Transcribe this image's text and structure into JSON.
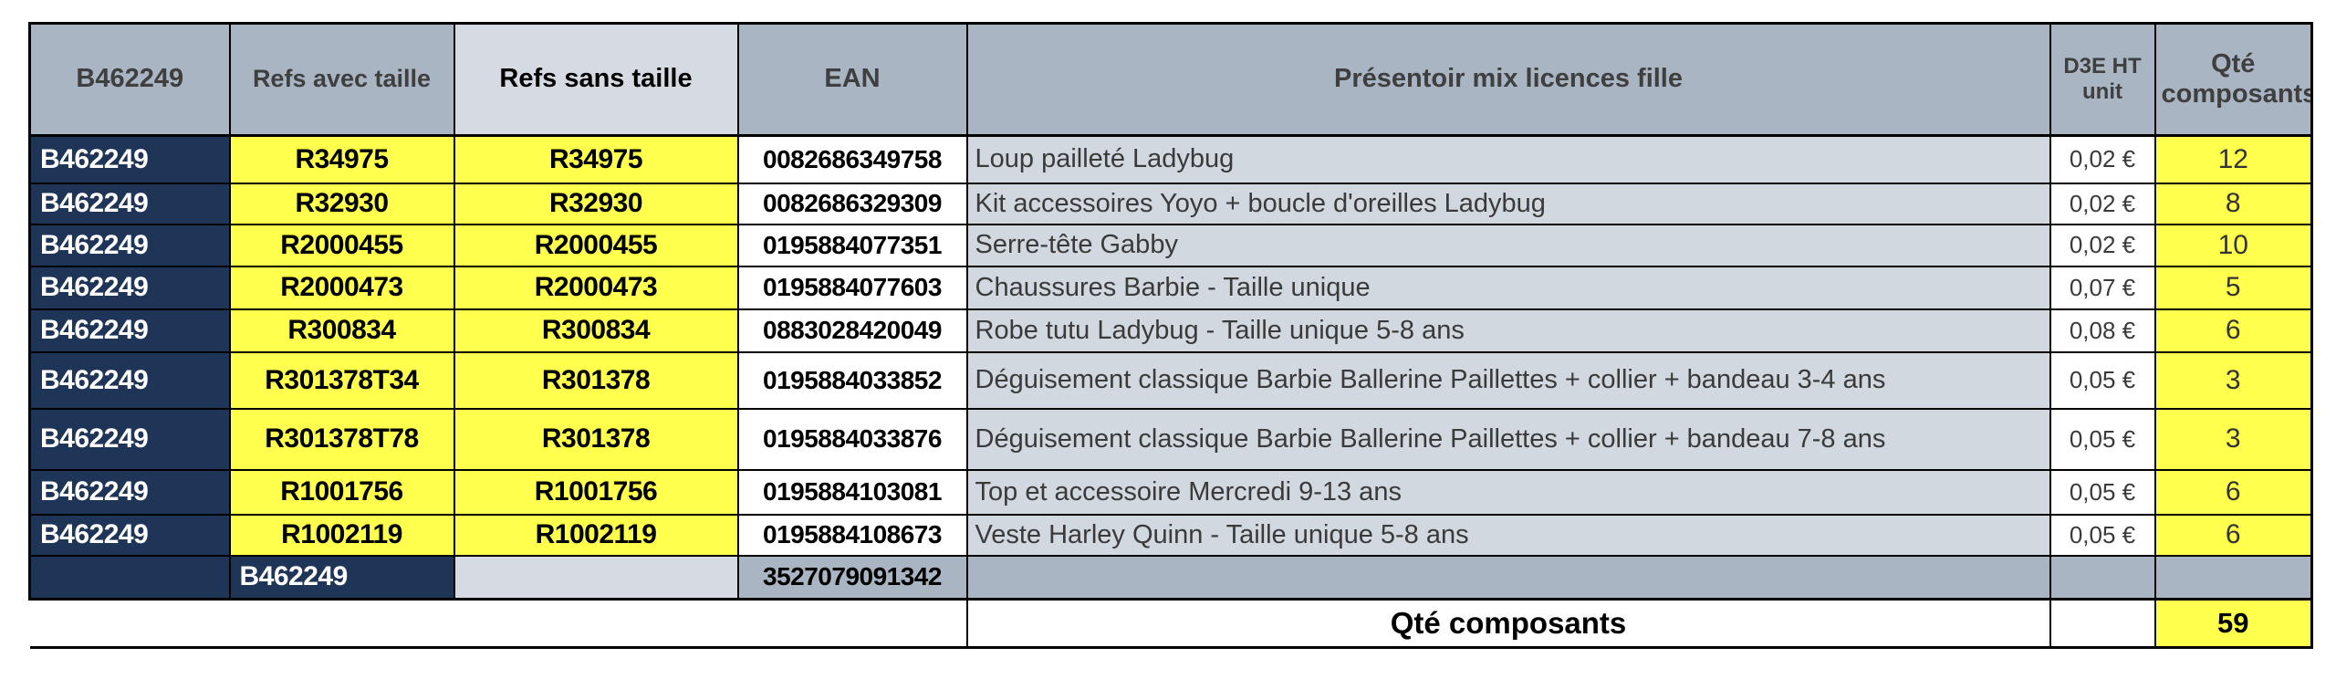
{
  "table": {
    "columns": [
      "B462249",
      "Refs avec taille",
      "Refs sans taille",
      "EAN",
      "Présentoir mix licences fille",
      "D3E HT unit",
      "Qté composants"
    ],
    "rows": [
      {
        "batch": "B462249",
        "ref_with_size": "R34975",
        "ref_without_size": "R34975",
        "ean": "0082686349758",
        "description": "Loup pailleté Ladybug",
        "d3e": "0,02 €",
        "qty": "12"
      },
      {
        "batch": "B462249",
        "ref_with_size": "R32930",
        "ref_without_size": "R32930",
        "ean": "0082686329309",
        "description": "Kit accessoires Yoyo + boucle d'oreilles Ladybug",
        "d3e": "0,02 €",
        "qty": "8"
      },
      {
        "batch": "B462249",
        "ref_with_size": "R2000455",
        "ref_without_size": "R2000455",
        "ean": "0195884077351",
        "description": "Serre-tête Gabby",
        "d3e": "0,02 €",
        "qty": "10"
      },
      {
        "batch": "B462249",
        "ref_with_size": "R2000473",
        "ref_without_size": "R2000473",
        "ean": "0195884077603",
        "description": "Chaussures Barbie - Taille unique",
        "d3e": "0,07 €",
        "qty": "5"
      },
      {
        "batch": "B462249",
        "ref_with_size": "R300834",
        "ref_without_size": "R300834",
        "ean": "0883028420049",
        "description": "Robe tutu Ladybug - Taille unique 5-8 ans",
        "d3e": "0,08 €",
        "qty": "6"
      },
      {
        "batch": "B462249",
        "ref_with_size": "R301378T34",
        "ref_without_size": "R301378",
        "ean": "0195884033852",
        "description": "Déguisement classique Barbie Ballerine Paillettes + collier + bandeau 3-4 ans",
        "d3e": "0,05 €",
        "qty": "3"
      },
      {
        "batch": "B462249",
        "ref_with_size": "R301378T78",
        "ref_without_size": "R301378",
        "ean": "0195884033876",
        "description": "Déguisement classique Barbie Ballerine Paillettes + collier + bandeau 7-8 ans",
        "d3e": "0,05 €",
        "qty": "3"
      },
      {
        "batch": "B462249",
        "ref_with_size": "R1001756",
        "ref_without_size": "R1001756",
        "ean": "0195884103081",
        "description": "Top et accessoire Mercredi 9-13 ans",
        "d3e": "0,05 €",
        "qty": "6"
      },
      {
        "batch": "B462249",
        "ref_with_size": "R1002119",
        "ref_without_size": "R1002119",
        "ean": "0195884108673",
        "description": "Veste Harley Quinn - Taille unique 5-8 ans",
        "d3e": "0,05 €",
        "qty": "6"
      }
    ],
    "summary_row": {
      "batch": "B462249",
      "ean": "3527079091342"
    },
    "footer": {
      "label": "Qté composants",
      "total": "59"
    }
  },
  "colors": {
    "header_background": "#a9b5c3",
    "light_header_background": "#d6dbe3",
    "batch_background": "#1f3558",
    "highlight_yellow": "#ffff4d",
    "description_background": "#d2d8e0",
    "border": "#000000"
  }
}
